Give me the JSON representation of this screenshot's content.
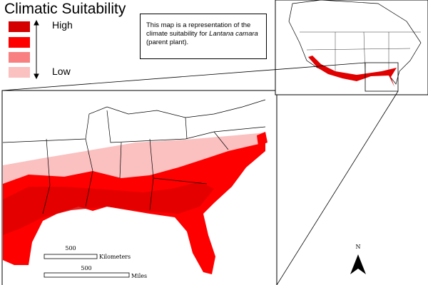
{
  "legend": {
    "title": "Climatic Suitability",
    "high_label": "High",
    "low_label": "Low",
    "classes": [
      {
        "level": "highest",
        "color": "#d40000"
      },
      {
        "level": "high",
        "color": "#ff0000"
      },
      {
        "level": "medium",
        "color": "#f88080"
      },
      {
        "level": "low",
        "color": "#fbc0c0"
      }
    ]
  },
  "note": {
    "text_before": "This map is a representation of the climate suitability for ",
    "species": "Lantana camara",
    "text_after": " (parent plant)."
  },
  "scale_bars": {
    "km_value": "500",
    "km_unit": "Kilometers",
    "mi_value": "500",
    "mi_unit": "Miles"
  },
  "north_arrow": {
    "label": "N"
  }
}
